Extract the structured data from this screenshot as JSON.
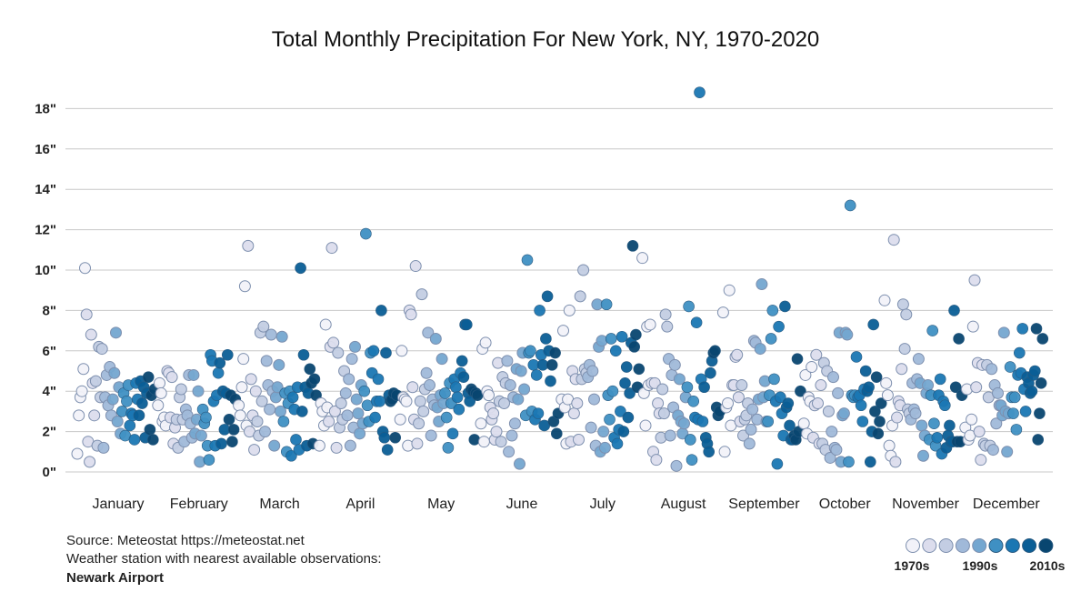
{
  "chart_data": {
    "type": "scatter",
    "title": "Total Monthly Precipitation For New York, NY, 1970-2020",
    "xlabel": "",
    "ylabel": "",
    "ylim": [
      0,
      19
    ],
    "yticks": [
      "0\"",
      "2\"",
      "4\"",
      "6\"",
      "8\"",
      "10\"",
      "12\"",
      "14\"",
      "16\"",
      "18\""
    ],
    "ytick_values": [
      0,
      2,
      4,
      6,
      8,
      10,
      12,
      14,
      16,
      18
    ],
    "grid": true,
    "categories": [
      "January",
      "February",
      "March",
      "April",
      "May",
      "June",
      "July",
      "August",
      "September",
      "October",
      "November",
      "December"
    ],
    "years": [
      1970,
      2020
    ],
    "series": [
      {
        "month": "January",
        "values": [
          0.9,
          2.8,
          3.7,
          4.0,
          5.1,
          10.1,
          7.8,
          1.5,
          0.5,
          6.8,
          4.4,
          2.8,
          4.5,
          1.3,
          6.2,
          3.7,
          6.1,
          1.2,
          3.7,
          4.8,
          3.3,
          5.2,
          2.8,
          3.6,
          4.9,
          6.9,
          2.5,
          4.2,
          1.9,
          3.0,
          3.9,
          1.8,
          3.5,
          4.3,
          2.3,
          2.9,
          2.8,
          1.6,
          4.4,
          3.6,
          2.8,
          4.5,
          3.4,
          4.2,
          1.7,
          3.9,
          4.7,
          2.1,
          3.8,
          1.6,
          4.1
        ]
      },
      {
        "month": "February",
        "values": [
          3.3,
          4.4,
          3.9,
          2.5,
          2.7,
          2.3,
          5.0,
          4.9,
          2.7,
          4.7,
          1.4,
          2.2,
          2.6,
          1.2,
          3.7,
          4.1,
          2.6,
          1.5,
          3.1,
          2.8,
          4.8,
          2.4,
          1.7,
          4.8,
          1.9,
          2.6,
          4.0,
          0.5,
          1.8,
          3.1,
          2.4,
          2.7,
          1.3,
          0.6,
          5.8,
          5.5,
          3.5,
          1.3,
          3.8,
          4.9,
          5.4,
          1.4,
          4.0,
          2.1,
          3.9,
          5.8,
          2.6,
          3.8,
          1.5,
          2.1,
          3.6
        ]
      },
      {
        "month": "March",
        "values": [
          3.3,
          2.8,
          4.2,
          5.6,
          9.2,
          2.3,
          11.2,
          2.0,
          4.6,
          2.8,
          1.1,
          4.0,
          2.5,
          1.8,
          6.9,
          3.5,
          7.2,
          2.0,
          5.5,
          4.3,
          3.1,
          6.8,
          4.0,
          1.3,
          3.7,
          4.2,
          5.3,
          3.0,
          6.7,
          2.5,
          3.9,
          1.0,
          3.4,
          4.0,
          0.8,
          3.7,
          3.1,
          1.6,
          4.2,
          1.1,
          10.1,
          3.0,
          5.8,
          4.2,
          1.3,
          3.9,
          5.1,
          4.4,
          1.4,
          4.6,
          3.8
        ]
      },
      {
        "month": "April",
        "values": [
          1.3,
          3.4,
          3.0,
          2.3,
          7.3,
          3.2,
          2.5,
          6.2,
          11.1,
          6.4,
          3.0,
          1.2,
          5.9,
          2.2,
          3.4,
          2.6,
          5.0,
          3.9,
          2.8,
          4.6,
          1.3,
          5.6,
          2.2,
          6.2,
          3.6,
          2.9,
          1.9,
          4.3,
          2.4,
          4.0,
          11.8,
          3.3,
          2.5,
          5.9,
          4.9,
          6.0,
          2.7,
          3.5,
          4.6,
          3.5,
          8.0,
          2.0,
          1.7,
          5.9,
          1.1,
          3.8,
          3.5,
          3.6,
          3.9,
          1.7,
          3.8
        ]
      },
      {
        "month": "May",
        "values": [
          2.6,
          6.0,
          3.7,
          3.6,
          3.5,
          1.3,
          8.0,
          7.8,
          4.2,
          2.6,
          10.2,
          1.4,
          2.4,
          3.5,
          8.8,
          3.0,
          4.1,
          4.9,
          6.9,
          4.3,
          1.8,
          3.6,
          3.3,
          6.6,
          3.2,
          2.5,
          3.8,
          5.6,
          3.4,
          3.9,
          2.7,
          1.2,
          4.4,
          3.4,
          1.9,
          4.6,
          4.2,
          3.7,
          3.1,
          4.9,
          5.5,
          4.7,
          7.3,
          7.3,
          3.9,
          3.5,
          4.1,
          4.0,
          1.6,
          3.9,
          3.8
        ]
      },
      {
        "month": "June",
        "values": [
          2.4,
          6.1,
          1.5,
          6.4,
          4.0,
          3.8,
          3.2,
          2.6,
          2.9,
          1.6,
          2.0,
          5.4,
          3.5,
          1.5,
          4.7,
          3.4,
          4.4,
          5.5,
          1.0,
          4.3,
          1.8,
          3.7,
          2.4,
          5.1,
          3.6,
          0.4,
          5.0,
          5.9,
          4.1,
          2.8,
          10.5,
          5.9,
          6.0,
          3.0,
          5.3,
          2.6,
          4.8,
          2.9,
          8.0,
          5.8,
          5.3,
          2.3,
          6.6,
          8.7,
          6.0,
          4.5,
          5.3,
          2.5,
          5.9,
          1.9,
          2.9
        ]
      },
      {
        "month": "July",
        "values": [
          3.6,
          7.0,
          3.2,
          1.4,
          3.6,
          8.0,
          1.5,
          5.0,
          2.9,
          4.6,
          3.4,
          1.6,
          8.7,
          4.6,
          10.0,
          5.1,
          4.9,
          4.7,
          5.3,
          2.2,
          5.0,
          3.6,
          1.3,
          8.3,
          6.2,
          1.0,
          6.5,
          2.0,
          1.2,
          8.3,
          3.8,
          2.6,
          6.6,
          4.0,
          1.7,
          6.0,
          1.4,
          2.1,
          3.0,
          6.7,
          2.0,
          4.4,
          5.2,
          2.7,
          3.9,
          6.4,
          11.2,
          6.2,
          6.8,
          4.2,
          5.1
        ]
      },
      {
        "month": "August",
        "values": [
          10.6,
          3.9,
          2.3,
          7.2,
          4.3,
          7.3,
          4.4,
          1.0,
          4.4,
          0.6,
          3.4,
          2.9,
          1.7,
          4.1,
          2.9,
          7.8,
          7.2,
          5.6,
          1.8,
          4.8,
          3.2,
          5.3,
          0.3,
          2.8,
          4.6,
          2.5,
          1.9,
          2.4,
          3.7,
          4.2,
          8.2,
          1.6,
          0.6,
          3.5,
          2.7,
          7.4,
          2.6,
          18.8,
          4.6,
          2.5,
          4.2,
          1.7,
          1.4,
          1.0,
          4.9,
          5.5,
          5.9,
          6.0,
          3.2,
          2.8,
          3.0
        ]
      },
      {
        "month": "September",
        "values": [
          7.9,
          1.0,
          3.2,
          3.4,
          9.0,
          2.3,
          4.3,
          4.3,
          5.7,
          5.8,
          3.7,
          2.5,
          4.3,
          1.8,
          2.6,
          2.8,
          3.4,
          1.4,
          2.1,
          3.1,
          6.5,
          6.4,
          2.6,
          3.6,
          6.1,
          9.3,
          3.7,
          4.5,
          2.5,
          2.5,
          3.8,
          6.6,
          8.0,
          4.6,
          3.5,
          0.4,
          7.2,
          3.7,
          2.9,
          1.8,
          8.2,
          3.2,
          3.4,
          2.3,
          1.6,
          1.6,
          1.8,
          1.6,
          5.6,
          2.0,
          4.0
        ]
      },
      {
        "month": "October",
        "values": [
          2.4,
          4.8,
          1.9,
          3.7,
          3.5,
          5.2,
          1.7,
          3.3,
          5.8,
          3.4,
          1.4,
          4.3,
          1.4,
          5.4,
          1.1,
          5.0,
          3.0,
          0.7,
          2.0,
          4.7,
          1.2,
          1.1,
          3.9,
          6.9,
          0.5,
          2.8,
          2.9,
          6.9,
          6.8,
          0.5,
          13.2,
          3.8,
          3.7,
          3.8,
          5.7,
          3.7,
          3.8,
          3.3,
          2.5,
          4.1,
          5.0,
          4.0,
          4.2,
          0.5,
          2.0,
          7.3,
          3.0,
          4.7,
          1.9,
          2.5,
          3.4
        ]
      },
      {
        "month": "November",
        "values": [
          8.5,
          4.4,
          3.8,
          1.3,
          0.8,
          2.3,
          11.5,
          0.5,
          2.7,
          3.5,
          3.3,
          5.1,
          8.3,
          6.1,
          7.8,
          3.1,
          2.9,
          2.6,
          4.4,
          3.1,
          2.9,
          4.6,
          5.6,
          4.4,
          2.3,
          0.8,
          1.8,
          3.9,
          4.3,
          1.6,
          3.8,
          7.0,
          2.4,
          1.3,
          1.7,
          3.8,
          4.6,
          0.9,
          3.5,
          3.3,
          1.2,
          1.8,
          2.3,
          1.5,
          1.5,
          8.0,
          4.2,
          1.5,
          6.6,
          1.5,
          3.8
        ]
      },
      {
        "month": "December",
        "values": [
          2.2,
          4.1,
          1.6,
          1.8,
          2.6,
          7.2,
          9.5,
          4.2,
          5.4,
          2.0,
          0.6,
          5.3,
          1.4,
          1.3,
          5.3,
          3.7,
          1.3,
          5.1,
          1.1,
          4.3,
          2.4,
          3.9,
          3.3,
          3.3,
          2.8,
          6.9,
          3.0,
          1.0,
          2.9,
          5.2,
          3.7,
          2.9,
          3.7,
          2.1,
          4.8,
          5.9,
          4.9,
          7.1,
          4.1,
          3.0,
          4.7,
          4.4,
          3.9,
          4.0,
          4.8,
          5.0,
          7.1,
          1.6,
          2.9,
          4.4,
          6.6
        ]
      }
    ],
    "legend": {
      "placement": "bottom-right",
      "labels": [
        "1970s",
        "1990s",
        "2010s"
      ],
      "colors": [
        "#f2f2f9",
        "#dcdded",
        "#c3cde3",
        "#a0b9d9",
        "#74a7d0",
        "#3f90c3",
        "#1a77b3",
        "#0a5e96",
        "#084670"
      ]
    }
  },
  "footer": {
    "source": "Source: Meteostat https://meteostat.net",
    "station_note": "Weather station with nearest available observations:",
    "station": "Newark Airport"
  }
}
